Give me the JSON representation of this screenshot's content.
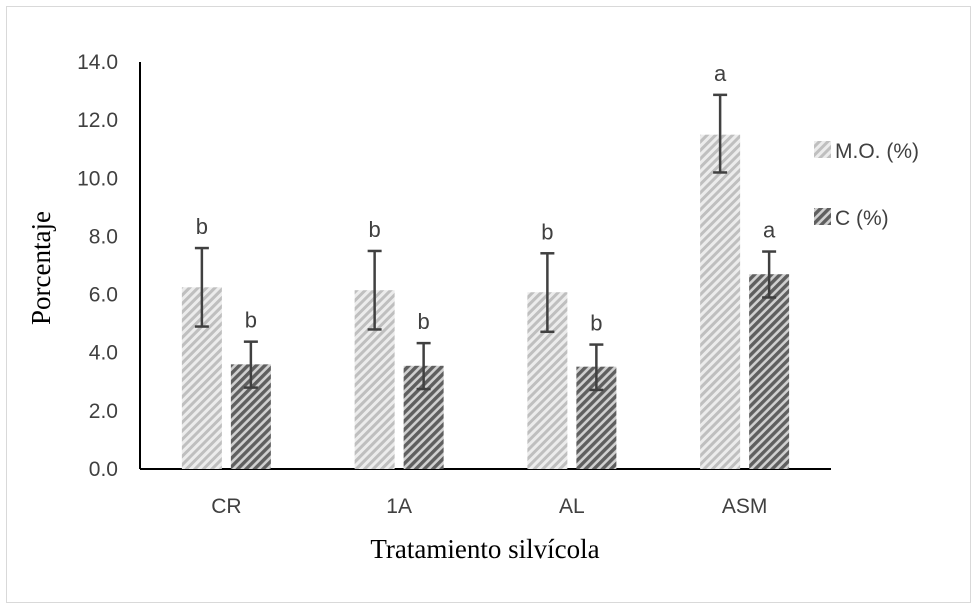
{
  "chart_data": {
    "type": "bar",
    "title": "",
    "xlabel": "Tratamiento silvícola",
    "ylabel": "Porcentaje",
    "ylim": [
      0,
      14
    ],
    "yticks": [
      0,
      2,
      4,
      6,
      8,
      10,
      12,
      14
    ],
    "ytick_labels": [
      "0.0",
      "2.0",
      "4.0",
      "6.0",
      "8.0",
      "10.0",
      "12.0",
      "14.0"
    ],
    "categories": [
      "CR",
      "1A",
      "AL",
      "ASM"
    ],
    "legend_position": "right",
    "series": [
      {
        "name": "M.O. (%)",
        "color": "#c8c8c8",
        "pattern": "light-diagonal-hatch",
        "values": [
          6.25,
          6.15,
          6.08,
          11.5
        ],
        "error_low": [
          4.9,
          4.8,
          4.72,
          10.2
        ],
        "error_high": [
          7.6,
          7.5,
          7.42,
          12.87
        ],
        "significance": [
          "b",
          "b",
          "b",
          "a"
        ]
      },
      {
        "name": "C (%)",
        "color": "#7f7f7f",
        "pattern": "dark-diagonal-hatch",
        "values": [
          3.6,
          3.55,
          3.52,
          6.7
        ],
        "error_low": [
          2.8,
          2.75,
          2.72,
          5.9
        ],
        "error_high": [
          4.38,
          4.33,
          4.28,
          7.48
        ],
        "significance": [
          "b",
          "b",
          "b",
          "a"
        ]
      }
    ]
  }
}
